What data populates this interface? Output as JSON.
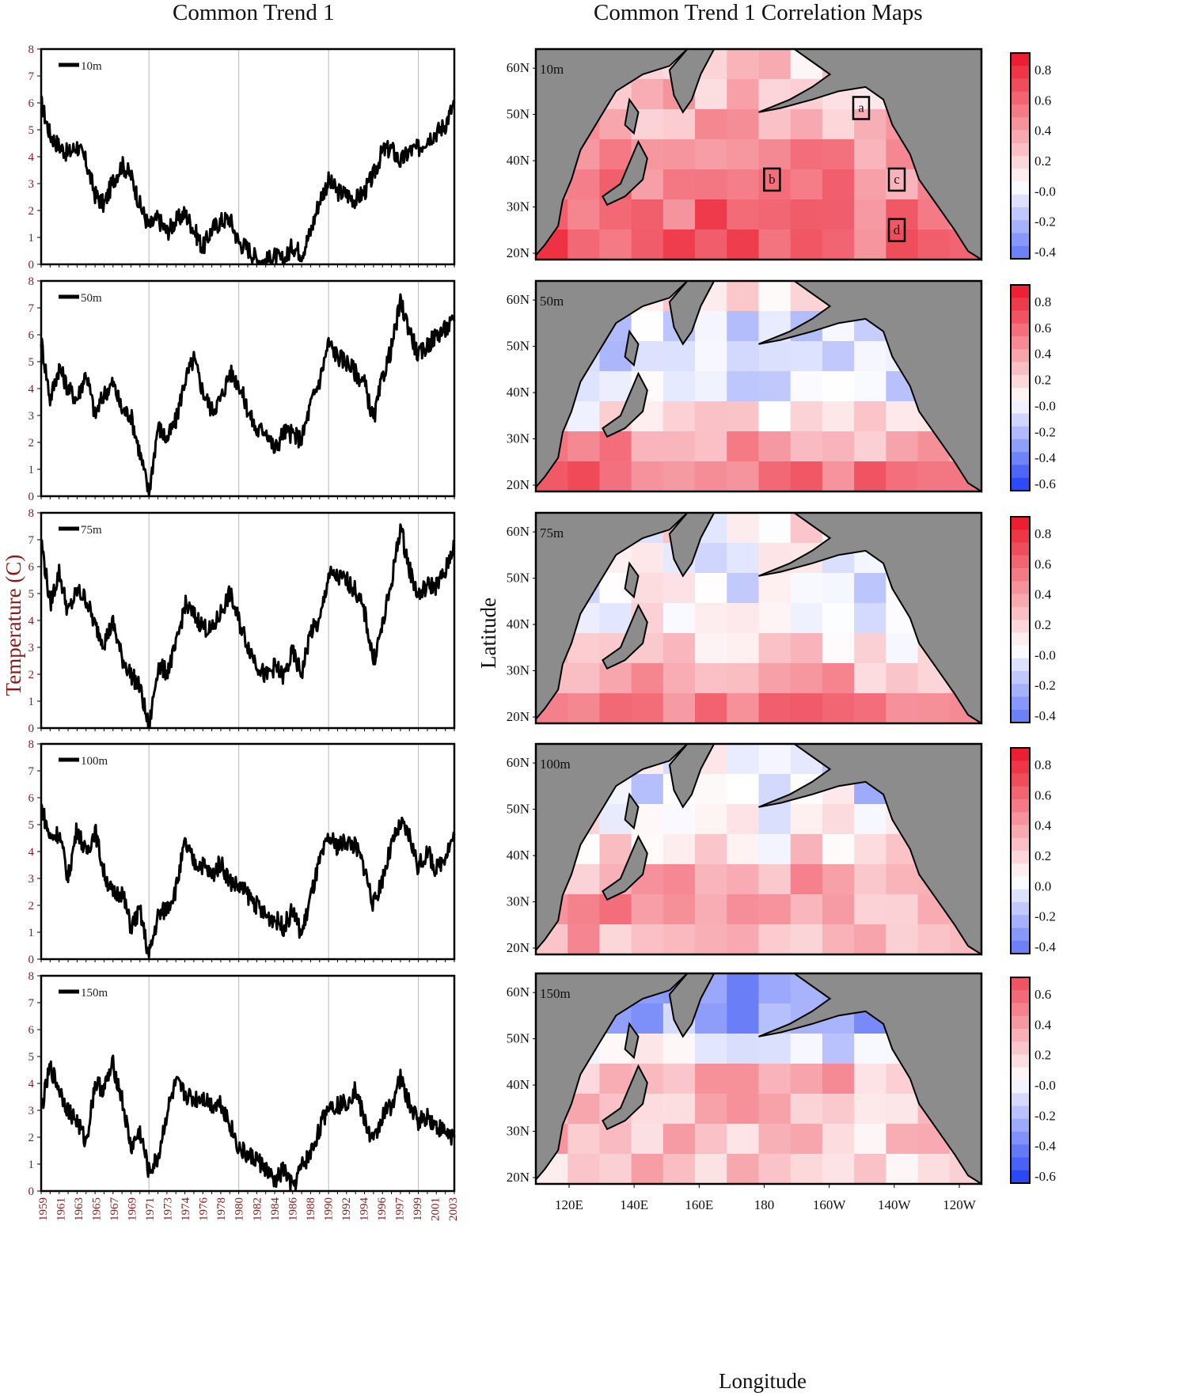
{
  "titles": {
    "left": "Common Trend 1",
    "right": "Common Trend 1 Correlation Maps"
  },
  "colors": {
    "line": "#000000",
    "land": "#8c8c8c",
    "grid": "#b8b8b8",
    "axis_tick_text": "#8b1a1a"
  },
  "chart_data": [
    {
      "type": "line",
      "title": "Common Trend 1",
      "ylabel": "Temperature (C)",
      "xlabel": "",
      "ylim": [
        0,
        8
      ],
      "yticks": [
        "0",
        "1",
        "2",
        "3",
        "4",
        "5",
        "6",
        "7",
        "8"
      ],
      "xticks": [
        "1959",
        "1961",
        "1963",
        "1965",
        "1967",
        "1969",
        "1971",
        "1973",
        "1974",
        "1976",
        "1978",
        "1980",
        "1982",
        "1984",
        "1986",
        "1988",
        "1990",
        "1992",
        "1994",
        "1996",
        "1997",
        "1999",
        "2001",
        "2003"
      ],
      "xlim": [
        1959,
        2005
      ],
      "gridlines_x": [
        1971,
        1981,
        1991,
        2001
      ],
      "series": [
        {
          "name": "10m",
          "x": [
            1959,
            1960,
            1961,
            1962,
            1963,
            1964,
            1965,
            1966,
            1967,
            1968,
            1969,
            1970,
            1971,
            1972,
            1973,
            1974,
            1975,
            1976,
            1977,
            1978,
            1979,
            1980,
            1981,
            1982,
            1983,
            1984,
            1985,
            1986,
            1987,
            1988,
            1989,
            1990,
            1991,
            1992,
            1993,
            1994,
            1995,
            1996,
            1997,
            1998,
            1999,
            2000,
            2001,
            2002,
            2003,
            2004,
            2005
          ],
          "values": [
            6.0,
            4.8,
            4.4,
            4.1,
            4.4,
            3.8,
            2.6,
            2.2,
            3.1,
            3.7,
            3.3,
            2.2,
            1.4,
            1.7,
            1.2,
            1.6,
            1.9,
            1.3,
            0.6,
            1.3,
            1.6,
            1.7,
            0.8,
            0.6,
            0.2,
            0.1,
            0.3,
            0.1,
            0.7,
            0.4,
            1.2,
            2.4,
            3.1,
            2.7,
            2.6,
            2.4,
            2.7,
            3.3,
            4.2,
            4.3,
            3.8,
            4.2,
            4.3,
            4.7,
            4.9,
            5.2,
            6.0
          ]
        },
        {
          "name": "50m",
          "x": [
            1959,
            1960,
            1961,
            1962,
            1963,
            1964,
            1965,
            1966,
            1967,
            1968,
            1969,
            1970,
            1971,
            1972,
            1973,
            1974,
            1975,
            1976,
            1977,
            1978,
            1979,
            1980,
            1981,
            1982,
            1983,
            1984,
            1985,
            1986,
            1987,
            1988,
            1989,
            1990,
            1991,
            1992,
            1993,
            1994,
            1995,
            1996,
            1997,
            1998,
            1999,
            2000,
            2001,
            2002,
            2003,
            2004,
            2005
          ],
          "values": [
            5.8,
            3.6,
            4.8,
            4.0,
            3.6,
            4.6,
            3.0,
            3.8,
            4.2,
            3.2,
            3.0,
            1.6,
            0.1,
            2.6,
            2.1,
            2.8,
            4.3,
            5.1,
            3.9,
            3.2,
            3.6,
            4.6,
            4.2,
            3.2,
            2.4,
            2.5,
            1.7,
            2.4,
            2.3,
            2.1,
            3.4,
            4.3,
            5.7,
            5.2,
            5.0,
            4.6,
            4.2,
            2.8,
            4.4,
            5.5,
            7.2,
            6.2,
            5.2,
            5.6,
            6.0,
            6.2,
            6.5
          ]
        },
        {
          "name": "75m",
          "x": [
            1959,
            1960,
            1961,
            1962,
            1963,
            1964,
            1965,
            1966,
            1967,
            1968,
            1969,
            1970,
            1971,
            1972,
            1973,
            1974,
            1975,
            1976,
            1977,
            1978,
            1979,
            1980,
            1981,
            1982,
            1983,
            1984,
            1985,
            1986,
            1987,
            1988,
            1989,
            1990,
            1991,
            1992,
            1993,
            1994,
            1995,
            1996,
            1997,
            1998,
            1999,
            2000,
            2001,
            2002,
            2003,
            2004,
            2005
          ],
          "values": [
            7.0,
            4.6,
            5.8,
            4.3,
            5.1,
            4.8,
            3.8,
            3.2,
            3.9,
            2.6,
            2.0,
            1.5,
            0.0,
            2.3,
            2.1,
            3.0,
            4.6,
            4.2,
            3.8,
            3.6,
            4.3,
            5.0,
            4.0,
            3.1,
            2.4,
            1.9,
            2.3,
            1.9,
            2.8,
            2.0,
            3.6,
            3.9,
            5.7,
            5.6,
            5.5,
            5.1,
            4.3,
            2.5,
            3.8,
            5.4,
            7.5,
            5.9,
            4.9,
            5.3,
            5.3,
            5.8,
            6.9
          ]
        },
        {
          "name": "100m",
          "x": [
            1959,
            1960,
            1961,
            1962,
            1963,
            1964,
            1965,
            1966,
            1967,
            1968,
            1969,
            1970,
            1971,
            1972,
            1973,
            1974,
            1975,
            1976,
            1977,
            1978,
            1979,
            1980,
            1981,
            1982,
            1983,
            1984,
            1985,
            1986,
            1987,
            1988,
            1989,
            1990,
            1991,
            1992,
            1993,
            1994,
            1995,
            1996,
            1997,
            1998,
            1999,
            2000,
            2001,
            2002,
            2003,
            2004,
            2005
          ],
          "values": [
            5.7,
            4.5,
            4.7,
            3.0,
            4.9,
            3.9,
            4.8,
            3.2,
            2.4,
            2.5,
            1.2,
            1.8,
            0.1,
            1.6,
            1.9,
            2.6,
            4.3,
            3.6,
            3.5,
            3.1,
            3.6,
            2.9,
            2.7,
            2.4,
            2.0,
            1.6,
            1.5,
            1.2,
            1.8,
            0.9,
            2.3,
            3.6,
            4.5,
            4.2,
            4.4,
            4.2,
            3.4,
            2.0,
            3.0,
            4.2,
            5.0,
            4.6,
            3.4,
            4.0,
            3.3,
            3.9,
            4.6
          ]
        },
        {
          "name": "150m",
          "x": [
            1959,
            1960,
            1961,
            1962,
            1963,
            1964,
            1965,
            1966,
            1967,
            1968,
            1969,
            1970,
            1971,
            1972,
            1973,
            1974,
            1975,
            1976,
            1977,
            1978,
            1979,
            1980,
            1981,
            1982,
            1983,
            1984,
            1985,
            1986,
            1987,
            1988,
            1989,
            1990,
            1991,
            1992,
            1993,
            1994,
            1995,
            1996,
            1997,
            1998,
            1999,
            2000,
            2001,
            2002,
            2003,
            2004,
            2005
          ],
          "values": [
            3.0,
            4.6,
            3.8,
            3.0,
            2.6,
            1.8,
            4.0,
            3.8,
            4.7,
            3.4,
            1.6,
            2.2,
            0.7,
            1.2,
            2.9,
            4.0,
            3.6,
            3.4,
            3.5,
            3.2,
            3.3,
            2.5,
            1.6,
            1.3,
            1.2,
            0.8,
            0.3,
            0.8,
            0.1,
            0.9,
            1.4,
            2.3,
            3.2,
            3.2,
            3.3,
            3.8,
            2.6,
            1.8,
            2.8,
            3.2,
            4.2,
            3.2,
            2.6,
            2.8,
            2.4,
            2.2,
            2.0
          ]
        }
      ]
    },
    {
      "type": "heatmap",
      "title": "Common Trend 1 Correlation Maps",
      "xlabel": "Longitude",
      "ylabel": "Latitude",
      "xticks": [
        "120E",
        "140E",
        "160E",
        "180",
        "160W",
        "140W",
        "120W"
      ],
      "yticks": [
        "20N",
        "30N",
        "40N",
        "50N",
        "60N"
      ],
      "box_labels": [
        "a",
        "b",
        "c",
        "d"
      ],
      "panels": [
        {
          "name": "10m",
          "colorbar_ticks": [
            "0.8",
            "0.6",
            "0.4",
            "0.2",
            "-0.0",
            "-0.2",
            "-0.4"
          ],
          "vmin": -0.5,
          "vmax": 0.9,
          "base": [
            0.62,
            0.58,
            0.5,
            0.42,
            0.32,
            0.26,
            0.18
          ]
        },
        {
          "name": "50m",
          "colorbar_ticks": [
            "0.8",
            "0.6",
            "0.4",
            "0.2",
            "-0.0",
            "-0.2",
            "-0.4",
            "-0.6"
          ],
          "vmin": -0.7,
          "vmax": 0.9,
          "base": [
            0.55,
            0.38,
            0.12,
            -0.05,
            -0.12,
            -0.1,
            0.15
          ]
        },
        {
          "name": "75m",
          "colorbar_ticks": [
            "0.8",
            "0.6",
            "0.4",
            "0.2",
            "-0.0",
            "-0.2",
            "-0.4"
          ],
          "vmin": -0.5,
          "vmax": 0.9,
          "base": [
            0.48,
            0.34,
            0.18,
            0.02,
            -0.04,
            -0.06,
            0.05
          ]
        },
        {
          "name": "100m",
          "colorbar_ticks": [
            "0.8",
            "0.6",
            "0.4",
            "0.2",
            "0.0",
            "-0.2",
            "-0.4"
          ],
          "vmin": -0.5,
          "vmax": 0.9,
          "base": [
            0.3,
            0.38,
            0.32,
            0.12,
            0.04,
            -0.08,
            -0.05
          ]
        },
        {
          "name": "150m",
          "colorbar_ticks": [
            "0.6",
            "0.4",
            "0.2",
            "-0.0",
            "-0.2",
            "-0.4",
            "-0.6"
          ],
          "vmin": -0.7,
          "vmax": 0.7,
          "base": [
            0.22,
            0.26,
            0.3,
            0.28,
            -0.05,
            -0.3,
            -0.4
          ]
        }
      ]
    }
  ]
}
